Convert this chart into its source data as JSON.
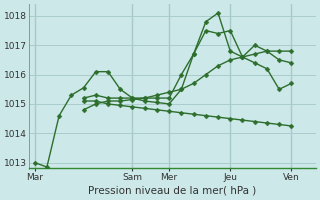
{
  "xlabel": "Pression niveau de la mer( hPa )",
  "background_color": "#cce8e8",
  "grid_color": "#aacccc",
  "line_color": "#2d6e2d",
  "ylim": [
    1012.8,
    1018.4
  ],
  "yticks": [
    1013,
    1014,
    1015,
    1016,
    1017,
    1018
  ],
  "day_labels": [
    "Mar",
    "Sam",
    "Mer",
    "Jeu",
    "Ven"
  ],
  "day_tick_positions": [
    0,
    8,
    11,
    16,
    21
  ],
  "vline_positions": [
    0,
    8,
    11,
    16,
    21
  ],
  "xlim": [
    -0.5,
    23
  ],
  "lines": [
    {
      "x": [
        0,
        1,
        2,
        3,
        4,
        5,
        6,
        7,
        8,
        9,
        10,
        11,
        12,
        13,
        14,
        15,
        16,
        17,
        18,
        19,
        20,
        21
      ],
      "y": [
        1013.0,
        1012.85,
        1014.6,
        1015.3,
        1015.55,
        1016.1,
        1016.1,
        1015.5,
        1015.2,
        1015.1,
        1015.05,
        1015.0,
        1015.5,
        1016.7,
        1017.8,
        1018.1,
        1016.8,
        1016.6,
        1017.0,
        1016.8,
        1016.5,
        1016.4
      ]
    },
    {
      "x": [
        4,
        5,
        6,
        7,
        8,
        9,
        10,
        11,
        12,
        13,
        14,
        15,
        16,
        17,
        18,
        19,
        20,
        21
      ],
      "y": [
        1015.2,
        1015.3,
        1015.2,
        1015.2,
        1015.2,
        1015.2,
        1015.2,
        1015.2,
        1016.0,
        1016.7,
        1017.5,
        1017.4,
        1017.5,
        1016.6,
        1016.4,
        1016.2,
        1015.5,
        1015.7
      ]
    },
    {
      "x": [
        4,
        5,
        6,
        7,
        8,
        9,
        10,
        11,
        12,
        13,
        14,
        15,
        16,
        17,
        18,
        19,
        20,
        21
      ],
      "y": [
        1014.8,
        1015.0,
        1015.1,
        1015.1,
        1015.15,
        1015.2,
        1015.3,
        1015.4,
        1015.5,
        1015.7,
        1016.0,
        1016.3,
        1016.5,
        1016.6,
        1016.7,
        1016.8,
        1016.8,
        1016.8
      ]
    },
    {
      "x": [
        4,
        5,
        6,
        7,
        8,
        9,
        10,
        11,
        12,
        13,
        14,
        15,
        16,
        17,
        18,
        19,
        20,
        21
      ],
      "y": [
        1015.1,
        1015.1,
        1015.0,
        1014.95,
        1014.9,
        1014.85,
        1014.8,
        1014.75,
        1014.7,
        1014.65,
        1014.6,
        1014.55,
        1014.5,
        1014.45,
        1014.4,
        1014.35,
        1014.3,
        1014.25
      ]
    }
  ]
}
